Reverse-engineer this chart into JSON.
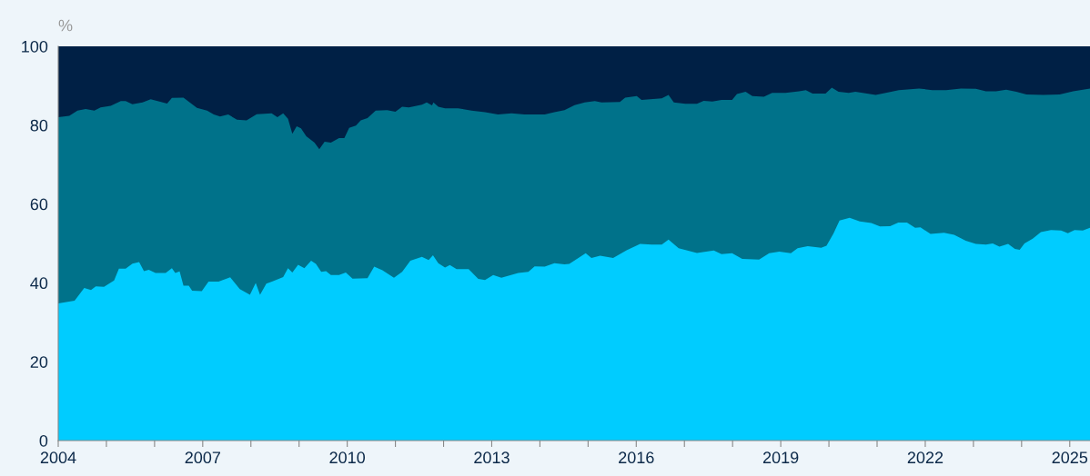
{
  "chart_data": {
    "type": "area",
    "ylabel": "%",
    "xlim": [
      2004,
      2025.42
    ],
    "ylim": [
      0,
      100
    ],
    "xticks": [
      2004,
      {
        "value": 2005,
        "label": null
      },
      {
        "value": 2006,
        "label": null
      },
      2007,
      {
        "value": 2008,
        "label": null
      },
      {
        "value": 2009,
        "label": null
      },
      2010,
      {
        "value": 2011,
        "label": null
      },
      {
        "value": 2012,
        "label": null
      },
      2013,
      {
        "value": 2014,
        "label": null
      },
      {
        "value": 2015,
        "label": null
      },
      2016,
      {
        "value": 2017,
        "label": null
      },
      {
        "value": 2018,
        "label": null
      },
      2019,
      {
        "value": 2020,
        "label": null
      },
      {
        "value": 2021,
        "label": null
      },
      2022,
      {
        "value": 2023,
        "label": null
      },
      {
        "value": 2024,
        "label": null
      },
      2025
    ],
    "yticks": [
      0,
      20,
      40,
      60,
      80,
      100
    ],
    "series": [
      {
        "color": "#002045",
        "x": [
          2004,
          2025.42
        ],
        "values": [
          100,
          100
        ]
      },
      {
        "color": "#00728a",
        "x": [
          2004.0,
          2004.23,
          2004.4,
          2004.57,
          2004.75,
          2004.88,
          2005.09,
          2005.3,
          2005.4,
          2005.54,
          2005.75,
          2005.92,
          2006.26,
          2006.36,
          2006.6,
          2006.88,
          2007.09,
          2007.23,
          2007.36,
          2007.53,
          2007.71,
          2007.91,
          2008.12,
          2008.43,
          2008.55,
          2008.67,
          2008.77,
          2008.86,
          2008.95,
          2009.04,
          2009.15,
          2009.32,
          2009.42,
          2009.53,
          2009.66,
          2009.83,
          2009.94,
          2010.04,
          2010.18,
          2010.28,
          2010.42,
          2010.59,
          2010.83,
          2011.0,
          2011.14,
          2011.28,
          2011.55,
          2011.65,
          2011.76,
          2011.79,
          2011.89,
          2012.03,
          2012.3,
          2012.58,
          2012.86,
          2013.13,
          2013.41,
          2013.68,
          2014.1,
          2014.3,
          2014.51,
          2014.72,
          2014.93,
          2015.14,
          2015.28,
          2015.66,
          2015.77,
          2016.01,
          2016.11,
          2016.53,
          2016.67,
          2016.78,
          2017.02,
          2017.26,
          2017.4,
          2017.58,
          2017.77,
          2017.99,
          2018.09,
          2018.27,
          2018.41,
          2018.65,
          2018.82,
          2019.1,
          2019.38,
          2019.52,
          2019.66,
          2019.93,
          2020.06,
          2020.2,
          2020.41,
          2020.55,
          2020.97,
          2021.18,
          2021.45,
          2021.87,
          2022.15,
          2022.43,
          2022.74,
          2023.05,
          2023.26,
          2023.47,
          2023.68,
          2023.89,
          2024.1,
          2024.45,
          2024.79,
          2025.07,
          2025.42
        ],
        "values": [
          82.0,
          82.4,
          83.7,
          84.1,
          83.7,
          84.5,
          84.9,
          86.1,
          86.1,
          85.3,
          85.8,
          86.6,
          85.5,
          86.9,
          87.0,
          84.4,
          83.7,
          82.7,
          82.2,
          82.7,
          81.4,
          81.2,
          82.8,
          83.0,
          82.0,
          83.0,
          81.6,
          77.8,
          79.7,
          79.2,
          77.2,
          75.6,
          73.9,
          75.8,
          75.6,
          76.7,
          76.7,
          79.3,
          79.9,
          81.2,
          81.8,
          83.7,
          83.8,
          83.4,
          84.7,
          84.5,
          85.2,
          85.8,
          85.0,
          85.8,
          84.7,
          84.3,
          84.3,
          83.7,
          83.3,
          82.7,
          83.0,
          82.7,
          82.7,
          83.3,
          83.8,
          85.1,
          85.8,
          86.1,
          85.8,
          85.9,
          87.0,
          87.4,
          86.4,
          86.8,
          87.7,
          85.8,
          85.4,
          85.4,
          86.2,
          86.0,
          86.4,
          86.4,
          87.9,
          88.5,
          87.4,
          87.2,
          88.2,
          88.2,
          88.6,
          88.9,
          88.0,
          88.0,
          89.5,
          88.5,
          88.2,
          88.5,
          87.7,
          88.2,
          88.9,
          89.3,
          88.9,
          88.9,
          89.3,
          89.2,
          88.6,
          88.6,
          89.0,
          88.5,
          87.8,
          87.7,
          87.8,
          88.6,
          89.3
        ]
      },
      {
        "color": "#00ccff",
        "x": [
          2004.0,
          2004.34,
          2004.54,
          2004.68,
          2004.78,
          2004.95,
          2005.16,
          2005.26,
          2005.4,
          2005.54,
          2005.68,
          2005.78,
          2005.88,
          2006.02,
          2006.23,
          2006.36,
          2006.43,
          2006.52,
          2006.6,
          2006.71,
          2006.78,
          2006.98,
          2007.12,
          2007.33,
          2007.57,
          2007.77,
          2007.98,
          2008.1,
          2008.19,
          2008.32,
          2008.45,
          2008.67,
          2008.77,
          2008.86,
          2008.98,
          2009.11,
          2009.25,
          2009.35,
          2009.46,
          2009.56,
          2009.66,
          2009.83,
          2009.97,
          2010.11,
          2010.42,
          2010.56,
          2010.73,
          2010.97,
          2011.14,
          2011.31,
          2011.55,
          2011.69,
          2011.78,
          2011.89,
          2012.03,
          2012.13,
          2012.27,
          2012.52,
          2012.72,
          2012.86,
          2013.03,
          2013.2,
          2013.55,
          2013.76,
          2013.89,
          2014.1,
          2014.3,
          2014.51,
          2014.61,
          2014.82,
          2014.95,
          2015.07,
          2015.25,
          2015.52,
          2015.8,
          2016.08,
          2016.32,
          2016.53,
          2016.67,
          2016.88,
          2017.26,
          2017.61,
          2017.77,
          2017.99,
          2018.2,
          2018.55,
          2018.76,
          2018.97,
          2019.21,
          2019.35,
          2019.56,
          2019.84,
          2019.95,
          2020.09,
          2020.22,
          2020.43,
          2020.64,
          2020.88,
          2021.06,
          2021.27,
          2021.44,
          2021.62,
          2021.79,
          2021.9,
          2022.11,
          2022.39,
          2022.6,
          2022.84,
          2023.05,
          2023.26,
          2023.4,
          2023.54,
          2023.72,
          2023.86,
          2023.96,
          2024.06,
          2024.23,
          2024.4,
          2024.61,
          2024.82,
          2024.96,
          2025.1,
          2025.27,
          2025.42
        ],
        "values": [
          34.8,
          35.5,
          38.7,
          38.2,
          39.1,
          39.0,
          40.6,
          43.6,
          43.6,
          44.9,
          45.3,
          43.0,
          43.3,
          42.5,
          42.5,
          43.7,
          42.5,
          42.9,
          39.3,
          39.3,
          38.0,
          37.9,
          40.3,
          40.3,
          41.4,
          38.4,
          37.0,
          40.0,
          37.0,
          39.8,
          40.4,
          41.5,
          43.7,
          42.6,
          44.6,
          43.7,
          45.6,
          44.8,
          42.8,
          43.0,
          42.0,
          42.0,
          42.6,
          41.1,
          41.2,
          44.1,
          43.2,
          41.3,
          42.8,
          45.6,
          46.6,
          45.8,
          47.0,
          45.0,
          43.9,
          44.5,
          43.5,
          43.5,
          41.0,
          40.7,
          42.0,
          41.3,
          42.5,
          42.8,
          44.2,
          44.1,
          45.0,
          44.7,
          44.8,
          46.5,
          47.5,
          46.3,
          46.9,
          46.3,
          48.3,
          49.9,
          49.7,
          49.7,
          51.0,
          48.8,
          47.6,
          48.2,
          47.3,
          47.5,
          46.1,
          45.9,
          47.5,
          47.9,
          47.5,
          48.8,
          49.3,
          48.9,
          49.4,
          52.4,
          55.8,
          56.5,
          55.6,
          55.2,
          54.3,
          54.4,
          55.3,
          55.3,
          54.0,
          54.1,
          52.4,
          52.7,
          52.2,
          50.7,
          49.9,
          49.7,
          50.0,
          49.2,
          49.9,
          48.6,
          48.4,
          50.0,
          51.2,
          52.9,
          53.4,
          53.3,
          52.6,
          53.4,
          53.3,
          54.0
        ]
      }
    ]
  }
}
